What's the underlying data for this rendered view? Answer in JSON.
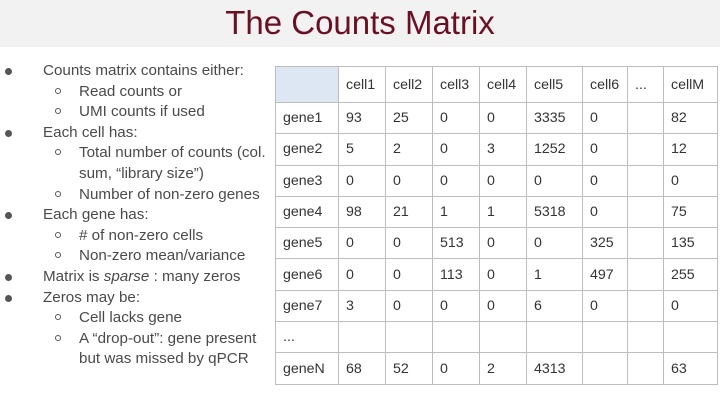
{
  "title": "The Counts Matrix",
  "bullets": [
    {
      "level": 1,
      "text": "Counts matrix contains either:"
    },
    {
      "level": 2,
      "text": "Read counts or"
    },
    {
      "level": 2,
      "text": "UMI counts if used"
    },
    {
      "level": 1,
      "text": "Each cell has:"
    },
    {
      "level": 2,
      "text": "Total number of counts (col."
    },
    {
      "level": 3,
      "text": "sum, “library size”)"
    },
    {
      "level": 2,
      "text": "Number of non-zero genes"
    },
    {
      "level": 1,
      "text": "Each gene has:"
    },
    {
      "level": 2,
      "text": "# of non-zero cells"
    },
    {
      "level": 2,
      "text": "Non-zero mean/variance"
    },
    {
      "level": 1,
      "text_before": "Matrix is ",
      "text_italic": "sparse",
      "text_after": " : many zeros"
    },
    {
      "level": 1,
      "text": "Zeros may be:"
    },
    {
      "level": 2,
      "text": "Cell lacks gene"
    },
    {
      "level": 2,
      "text": "A “drop-out”: gene present"
    },
    {
      "level": 3,
      "text": "but was missed by qPCR"
    }
  ],
  "matrix": {
    "header": [
      "",
      "cell1",
      "cell2",
      "cell3",
      "cell4",
      "cell5",
      "cell6",
      "...",
      "cellM"
    ],
    "rows": [
      [
        "gene1",
        "93",
        "25",
        "0",
        "0",
        "3335",
        "0",
        "",
        "82"
      ],
      [
        "gene2",
        "5",
        "2",
        "0",
        "3",
        "1252",
        "0",
        "",
        "12"
      ],
      [
        "gene3",
        "0",
        "0",
        "0",
        "0",
        "0",
        "0",
        "",
        "0"
      ],
      [
        "gene4",
        "98",
        "21",
        "1",
        "1",
        "5318",
        "0",
        "",
        "75"
      ],
      [
        "gene5",
        "0",
        "0",
        "513",
        "0",
        "0",
        "325",
        "",
        "135"
      ],
      [
        "gene6",
        "0",
        "0",
        "113",
        "0",
        "1",
        "497",
        "",
        "255"
      ],
      [
        "gene7",
        "3",
        "0",
        "0",
        "0",
        "6",
        "0",
        "",
        "0"
      ],
      [
        "...",
        "",
        "",
        "",
        "",
        "",
        "",
        "",
        ""
      ],
      [
        "geneN",
        "68",
        "52",
        "0",
        "2",
        "4313",
        "",
        "",
        "63"
      ]
    ]
  },
  "colors": {
    "title": "#6b0f23",
    "title_band": "#f2f2f2",
    "corner_cell": "#dde6f3",
    "grid": "#bdbdbd"
  }
}
